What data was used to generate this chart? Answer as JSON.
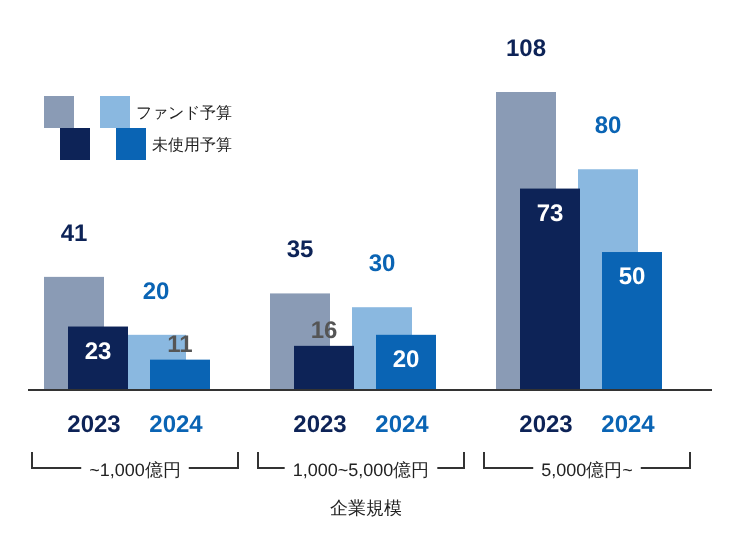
{
  "chart_data": {
    "type": "bar",
    "xlabel": "企業規模",
    "categories": [
      "2023",
      "2024",
      "2023",
      "2024",
      "2023",
      "2024"
    ],
    "series": [
      {
        "name": "ファンド予算",
        "colors": [
          "#8a9bb5",
          "#8ab8e0",
          "#8a9bb5",
          "#8ab8e0",
          "#8a9bb5",
          "#8ab8e0"
        ],
        "values": [
          41,
          20,
          35,
          30,
          108,
          80
        ]
      },
      {
        "name": "未使用予算",
        "colors": [
          "#0d2357",
          "#0a64b4",
          "#0d2357",
          "#0a64b4",
          "#0d2357",
          "#0a64b4"
        ],
        "values": [
          23,
          11,
          16,
          20,
          73,
          50
        ]
      }
    ],
    "annotations": [
      "~1,000億円",
      "1,000~5,000億円",
      "5,000億円~"
    ],
    "data_labels": true,
    "legend": "top left"
  }
}
